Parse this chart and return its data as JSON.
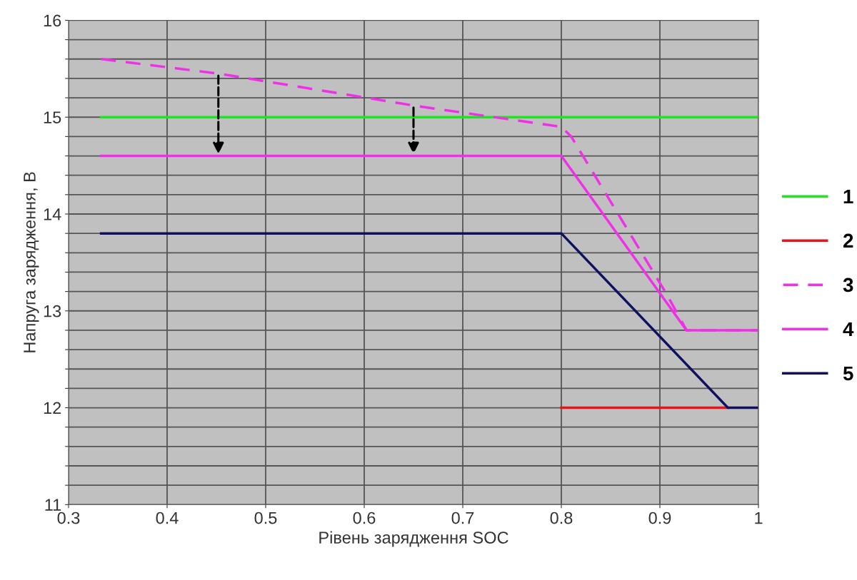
{
  "chart_data": {
    "type": "line",
    "xlabel": "Рівень зарядження SOC",
    "ylabel": "Напруга зарядження, В",
    "xlim": [
      0.3,
      1
    ],
    "xticks": [
      0.3,
      0.4,
      0.5,
      0.6,
      0.7,
      0.8,
      0.9,
      1
    ],
    "ylim": [
      11,
      16
    ],
    "yticks": [
      11,
      {
        "value": 11.2,
        "label": null
      },
      {
        "value": 11.4,
        "label": null
      },
      {
        "value": 11.6,
        "label": null
      },
      {
        "value": 11.8,
        "label": null
      },
      12,
      {
        "value": 12.2,
        "label": null
      },
      {
        "value": 12.4,
        "label": null
      },
      {
        "value": 12.6,
        "label": null
      },
      {
        "value": 12.8,
        "label": null
      },
      13,
      {
        "value": 13.2,
        "label": null
      },
      {
        "value": 13.4,
        "label": null
      },
      {
        "value": 13.6,
        "label": null
      },
      {
        "value": 13.8,
        "label": null
      },
      14,
      {
        "value": 14.2,
        "label": null
      },
      {
        "value": 14.4,
        "label": null
      },
      {
        "value": 14.6,
        "label": null
      },
      {
        "value": 14.8,
        "label": null
      },
      15,
      {
        "value": 15.2,
        "label": null
      },
      {
        "value": 15.4,
        "label": null
      },
      {
        "value": 15.6,
        "label": null
      },
      {
        "value": 15.8,
        "label": null
      },
      16
    ],
    "grid": true,
    "legend": "right",
    "series": [
      {
        "name": "1",
        "color": "#22e322",
        "x": [
          0.333,
          1
        ],
        "values": [
          15,
          15
        ]
      },
      {
        "name": "2",
        "color": "#e8141c",
        "x": [
          0.8,
          0.969
        ],
        "values": [
          12,
          12
        ]
      },
      {
        "name": "3",
        "color": "#f030e8",
        "line_style": "dashed",
        "x": [
          0.333,
          0.452,
          0.65,
          0.8,
          0.81,
          0.907,
          0.927,
          1
        ],
        "values": [
          15.6,
          15.45,
          15.12,
          14.9,
          14.8,
          13.17,
          12.8,
          12.8
        ]
      },
      {
        "name": "4",
        "color": "#f030e8",
        "x": [
          0.333,
          0.8,
          0.927,
          1
        ],
        "values": [
          14.6,
          14.6,
          12.8,
          12.8
        ]
      },
      {
        "name": "5",
        "color": "#101060",
        "x": [
          0.333,
          0.8,
          0.969,
          1
        ],
        "values": [
          13.8,
          13.8,
          12.0,
          12.0
        ]
      }
    ]
  }
}
